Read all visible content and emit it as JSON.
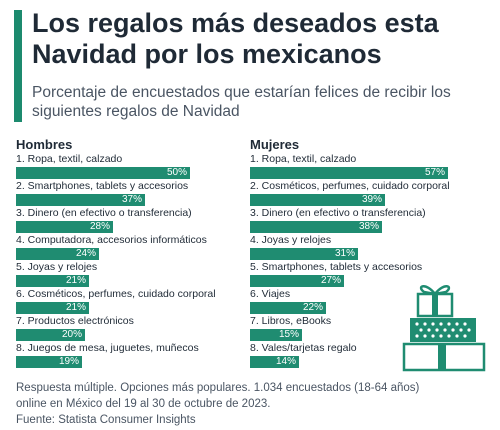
{
  "header": {
    "title": "Los regalos más deseados esta Navidad por los mexicanos",
    "subtitle": "Porcentaje de encuestados que estarían felices de recibir los siguientes regalos de Navidad"
  },
  "chart_data": [
    {
      "type": "bar",
      "title": "Hombres",
      "categories": [
        "1. Ropa, textil, calzado",
        "2. Smartphones, tablets y accesorios",
        "3. Dinero (en efectivo o transferencia)",
        "4. Computadora, accesorios informáticos",
        "5. Joyas y relojes",
        "6. Cosméticos, perfumes, cuidado corporal",
        "7. Productos electrónicos",
        "8. Juegos de mesa, juguetes, muñecos"
      ],
      "values": [
        50,
        37,
        28,
        24,
        21,
        21,
        20,
        19
      ],
      "value_labels": [
        "50%",
        "37%",
        "28%",
        "24%",
        "21%",
        "21%",
        "20%",
        "19%"
      ],
      "xlim": [
        0,
        57
      ],
      "orientation": "horizontal"
    },
    {
      "type": "bar",
      "title": "Mujeres",
      "categories": [
        "1. Ropa, textil, calzado",
        "2. Cosméticos, perfumes, cuidado corporal",
        "3. Dinero (en efectivo o transferencia)",
        "4. Joyas y relojes",
        "5. Smartphones, tablets y accesorios",
        "6. Viajes",
        "7. Libros, eBooks",
        "8. Vales/tarjetas regalo"
      ],
      "values": [
        57,
        39,
        38,
        31,
        27,
        22,
        15,
        14
      ],
      "value_labels": [
        "57%",
        "39%",
        "38%",
        "31%",
        "27%",
        "22%",
        "15%",
        "14%"
      ],
      "xlim": [
        0,
        57
      ],
      "orientation": "horizontal"
    }
  ],
  "footer": {
    "note_line1": "Respuesta múltiple. Opciones más populares. 1.034 encuestados (18-64 años)",
    "note_line2": "online en México del 19 al 30 de octubre de 2023.",
    "source": "Fuente: Statista Consumer Insights"
  },
  "colors": {
    "bar": "#1f8c71",
    "accent": "#1c8a6e",
    "gift": "#1f8c71",
    "title": "#1f2a36"
  },
  "icons": {
    "illustration": "gift-stack-icon"
  }
}
